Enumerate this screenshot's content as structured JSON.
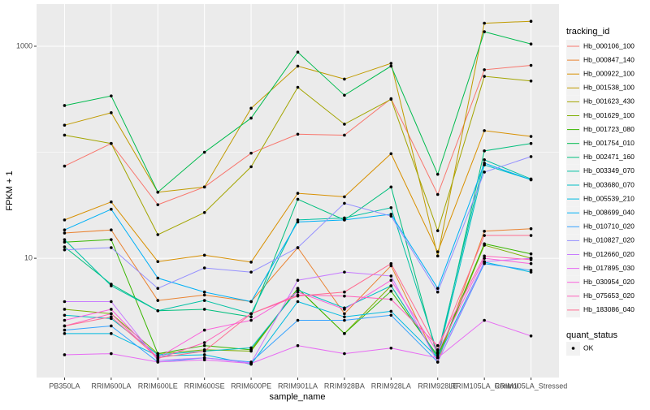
{
  "chart_data": {
    "type": "line",
    "x_label": "sample_name",
    "y_label": "FPKM + 1",
    "log_y": true,
    "grid": true,
    "legend_title": "tracking_id",
    "legend_position": "right",
    "legend2_title": "quant_status",
    "legend2_entries": [
      "OK"
    ],
    "point_color": "#000000",
    "categories": [
      "PB350LA",
      "RRIM600LA",
      "RRIM600LE",
      "RRIM600SE",
      "RRIM600PE",
      "RRIM901LA",
      "RRIM928BA",
      "RRIM928LA",
      "RRIM928LE",
      "RRIM105LA_Control",
      "RRIM105LA_Stressed"
    ],
    "ylim": [
      0.75,
      2500
    ],
    "yticks": [
      10,
      1000
    ],
    "series": [
      {
        "name": "Hb_000106_100",
        "color": "#F8766D",
        "values": [
          74,
          121,
          32,
          47,
          98,
          148,
          145,
          320,
          40,
          600,
          660
        ]
      },
      {
        "name": "Hb_000847_140",
        "color": "#EA8331",
        "values": [
          17.3,
          18.5,
          4.0,
          4.5,
          3.9,
          12.6,
          3.0,
          8.5,
          1.05,
          18,
          19
        ]
      },
      {
        "name": "Hb_000922_100",
        "color": "#D89000",
        "values": [
          23,
          34,
          9.3,
          10.7,
          9.2,
          41,
          38,
          97,
          11.5,
          160,
          141
        ]
      },
      {
        "name": "Hb_001538_100",
        "color": "#C09B00",
        "values": [
          180,
          236,
          42,
          47,
          260,
          650,
          490,
          690,
          10.5,
          1650,
          1720
        ]
      },
      {
        "name": "Hb_001623_430",
        "color": "#A3A500",
        "values": [
          145,
          121,
          16.7,
          27,
          73,
          410,
          184,
          316,
          18.2,
          520,
          470
        ]
      },
      {
        "name": "Hb_001629_100",
        "color": "#7CAE00",
        "values": [
          3.3,
          3.0,
          1.26,
          1.37,
          1.33,
          5.2,
          1.95,
          5.5,
          1.15,
          13.3,
          10
        ]
      },
      {
        "name": "Hb_001723_080",
        "color": "#39B600",
        "values": [
          14.2,
          15,
          1.26,
          1.5,
          1.37,
          5.2,
          1.95,
          4.9,
          1.2,
          13.7,
          11
        ]
      },
      {
        "name": "Hb_001754_010",
        "color": "#00BB4E",
        "values": [
          276,
          340,
          42,
          100,
          210,
          880,
          345,
          650,
          62,
          1370,
          1050
        ]
      },
      {
        "name": "Hb_002471_160",
        "color": "#00BF7D",
        "values": [
          12.8,
          5.7,
          3.2,
          3.3,
          2.8,
          36,
          23,
          47,
          1.15,
          103,
          121
        ]
      },
      {
        "name": "Hb_003349_070",
        "color": "#00C1A3",
        "values": [
          15,
          5.5,
          3.2,
          4.0,
          3.0,
          23,
          24,
          30,
          1.26,
          85,
          56
        ]
      },
      {
        "name": "Hb_003680_070",
        "color": "#00BFC4",
        "values": [
          2.9,
          2.7,
          1.23,
          1.33,
          1.43,
          5.0,
          3.4,
          5.5,
          1.15,
          76,
          55
        ]
      },
      {
        "name": "Hb_005539_210",
        "color": "#00BAE0",
        "values": [
          1.95,
          1.95,
          1.2,
          1.23,
          1.0,
          3.9,
          2.8,
          3.16,
          1.15,
          9.2,
          7.4
        ]
      },
      {
        "name": "Hb_008699_040",
        "color": "#00B0F6",
        "values": [
          18.5,
          29,
          6.5,
          4.8,
          3.9,
          22,
          23,
          26,
          5.2,
          79,
          55
        ]
      },
      {
        "name": "Hb_010710_020",
        "color": "#35A2FF",
        "values": [
          2.1,
          2.3,
          1.05,
          1.15,
          1.05,
          2.6,
          2.6,
          2.9,
          1.05,
          8.9,
          7.7
        ]
      },
      {
        "name": "Hb_010827_020",
        "color": "#9590FF",
        "values": [
          12,
          12.6,
          5.2,
          8.1,
          7.4,
          12.6,
          33,
          25,
          4.8,
          65,
          91
        ]
      },
      {
        "name": "Hb_012660_020",
        "color": "#C77CFF",
        "values": [
          3.9,
          3.9,
          1.09,
          1.15,
          1.03,
          6.2,
          7.4,
          6.8,
          1.05,
          9.3,
          10
        ]
      },
      {
        "name": "Hb_017895_030",
        "color": "#E76BF3",
        "values": [
          1.23,
          1.26,
          1.05,
          1.1,
          1.02,
          1.5,
          1.26,
          1.42,
          1.15,
          2.6,
          1.85
        ]
      },
      {
        "name": "Hb_030954_020",
        "color": "#FA62DB",
        "values": [
          2.6,
          3.3,
          1.15,
          2.1,
          2.6,
          4.8,
          3.3,
          6.2,
          1.3,
          10,
          8.9
        ]
      },
      {
        "name": "Hb_075653_020",
        "color": "#FF62BC",
        "values": [
          2.3,
          3.0,
          1.13,
          1.6,
          3.0,
          4.5,
          4.4,
          4.1,
          1.5,
          10.5,
          9.7
        ]
      },
      {
        "name": "Hb_183086_040",
        "color": "#FF6C91",
        "values": [
          2.3,
          2.8,
          1.15,
          1.33,
          3.0,
          4.4,
          4.8,
          8.9,
          1.37,
          16.4,
          16.4
        ]
      }
    ]
  }
}
